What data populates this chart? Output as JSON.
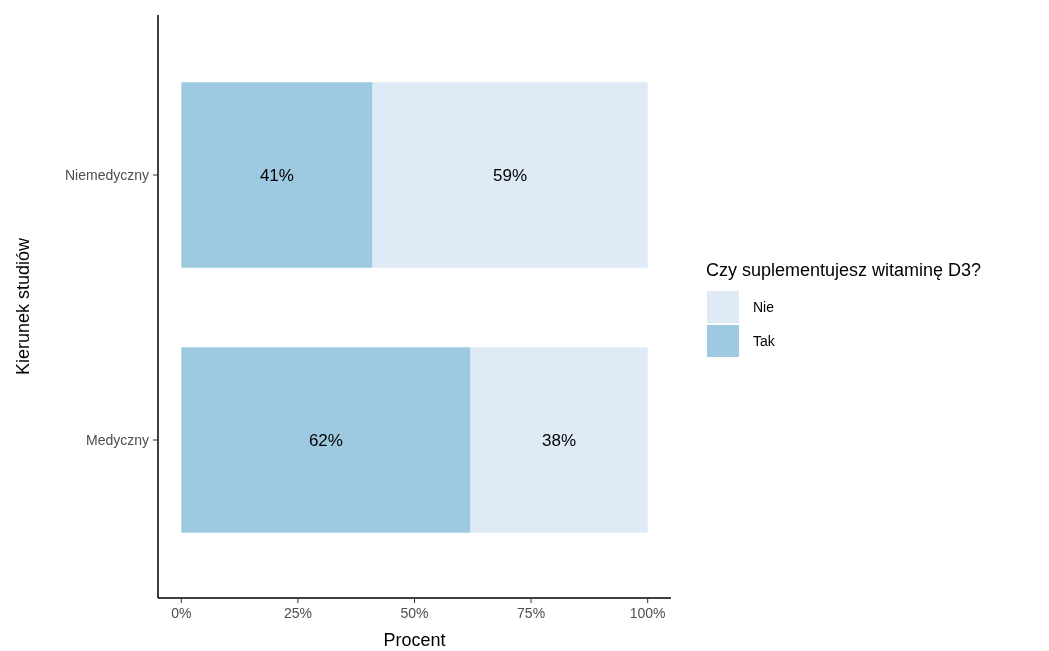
{
  "chart_data": {
    "type": "bar",
    "orientation": "horizontal",
    "stacked": true,
    "xlabel": "Procent",
    "ylabel": "Kierunek studiów",
    "legend_title": "Czy suplementujesz witaminę D3?",
    "legend": "right",
    "grid": false,
    "categories": [
      "Niemedyczny",
      "Medyczny"
    ],
    "series": [
      {
        "name": "Tak",
        "color": "#9ecae1",
        "values": [
          41,
          62
        ],
        "value_labels": [
          "41%",
          "62%"
        ]
      },
      {
        "name": "Nie",
        "color": "#deebf7",
        "values": [
          59,
          38
        ],
        "value_labels": [
          "59%",
          "38%"
        ]
      }
    ],
    "xlim": [
      -5,
      105
    ],
    "xticks": [
      {
        "value": 0,
        "label": "0%"
      },
      {
        "value": 25,
        "label": "25%"
      },
      {
        "value": 50,
        "label": "50%"
      },
      {
        "value": 75,
        "label": "75%"
      },
      {
        "value": 100,
        "label": "100%"
      }
    ]
  }
}
